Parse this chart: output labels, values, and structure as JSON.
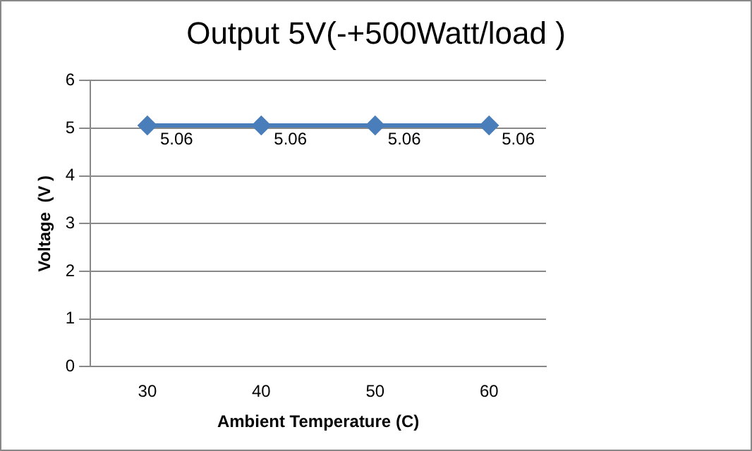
{
  "chart_data": {
    "type": "line",
    "title": "Output 5V(-+500Watt/load )",
    "xlabel": "Ambient Temperature (C)",
    "ylabel": "Voltage  (V )",
    "categories": [
      "30",
      "40",
      "50",
      "60"
    ],
    "series": [
      {
        "color": "#4a7ebb",
        "values": [
          5.06,
          5.06,
          5.06,
          5.06
        ]
      }
    ],
    "ylim": [
      0,
      6
    ],
    "yticks": [
      0,
      1,
      2,
      3,
      4,
      5,
      6
    ],
    "grid": "y",
    "marker": "diamond",
    "line_style": "solid",
    "data_labels": true
  }
}
